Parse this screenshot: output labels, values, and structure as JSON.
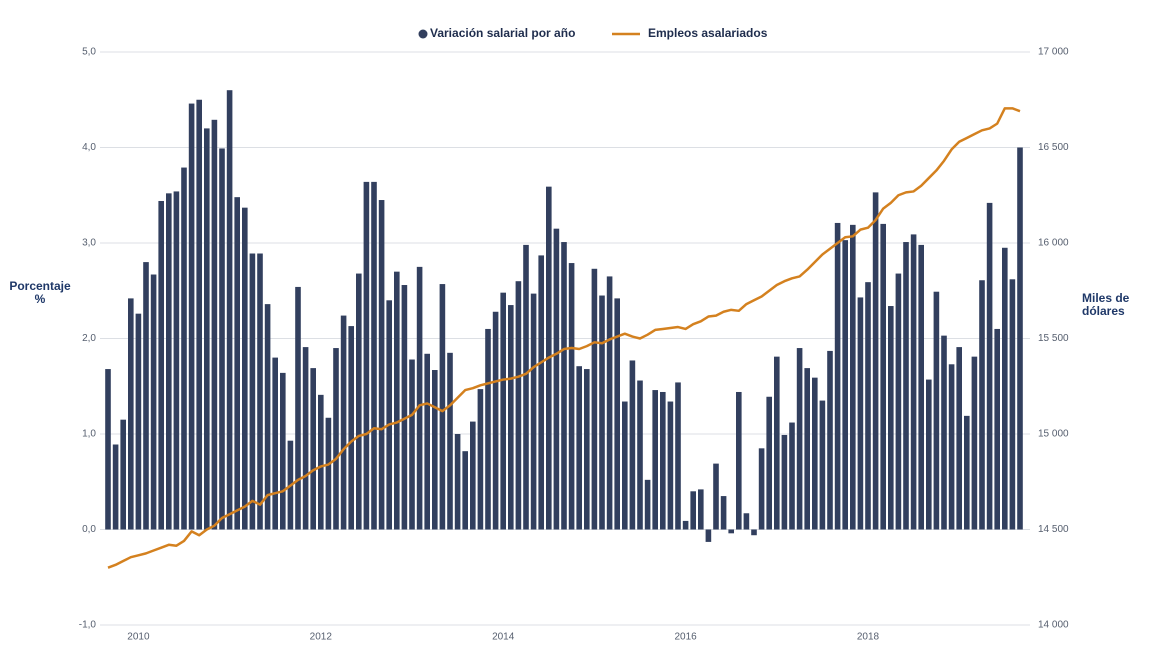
{
  "chart_data": {
    "type": "bar_line",
    "categories": [
      null,
      null,
      null,
      null,
      "2010",
      null,
      null,
      null,
      null,
      null,
      null,
      null,
      null,
      null,
      null,
      null,
      null,
      null,
      null,
      null,
      null,
      null,
      null,
      null,
      null,
      null,
      null,
      null,
      "2012",
      null,
      null,
      null,
      null,
      null,
      null,
      null,
      null,
      null,
      null,
      null,
      null,
      null,
      null,
      null,
      null,
      null,
      null,
      null,
      null,
      null,
      null,
      null,
      "2014",
      null,
      null,
      null,
      null,
      null,
      null,
      null,
      null,
      null,
      null,
      null,
      null,
      null,
      null,
      null,
      null,
      null,
      null,
      null,
      null,
      null,
      null,
      null,
      "2016",
      null,
      null,
      null,
      null,
      null,
      null,
      null,
      null,
      null,
      null,
      null,
      null,
      null,
      null,
      null,
      null,
      null,
      null,
      null,
      null,
      null,
      null,
      null,
      "2018",
      null,
      null,
      null,
      null,
      null,
      null,
      null,
      null,
      null,
      null,
      null,
      null,
      null,
      null,
      null,
      null,
      null,
      null,
      null,
      null
    ],
    "series": [
      {
        "name": "Variación salarial por año",
        "color": "#323f5e",
        "type": "bar",
        "axis": "y",
        "values": [
          1.68,
          0.89,
          1.15,
          2.42,
          2.26,
          2.8,
          2.67,
          3.44,
          3.52,
          3.54,
          3.79,
          4.46,
          4.5,
          4.2,
          4.29,
          3.99,
          4.6,
          3.48,
          3.37,
          2.89,
          2.89,
          2.36,
          1.8,
          1.64,
          0.93,
          2.54,
          1.91,
          1.69,
          1.41,
          1.17,
          1.9,
          2.24,
          2.13,
          2.68,
          3.64,
          3.64,
          3.45,
          2.4,
          2.7,
          2.56,
          1.78,
          2.75,
          1.84,
          1.67,
          2.57,
          1.85,
          1.0,
          0.82,
          1.13,
          1.47,
          2.1,
          2.28,
          2.48,
          2.35,
          2.6,
          2.98,
          2.47,
          2.87,
          3.59,
          3.15,
          3.01,
          2.79,
          1.71,
          1.68,
          2.73,
          2.45,
          2.65,
          2.42,
          1.34,
          1.77,
          1.56,
          0.52,
          1.46,
          1.44,
          1.34,
          1.54,
          0.09,
          0.4,
          0.42,
          -0.13,
          0.69,
          0.35,
          -0.04,
          1.44,
          0.17,
          -0.06,
          0.85,
          1.39,
          1.81,
          0.99,
          1.12,
          1.9,
          1.69,
          1.59,
          1.35,
          1.87,
          3.21,
          3.03,
          3.19,
          2.43,
          2.59,
          3.53,
          3.2,
          2.34,
          2.68,
          3.01,
          3.09,
          2.98,
          1.57,
          2.49,
          2.03,
          1.73,
          1.91,
          1.19,
          1.81,
          2.61,
          3.42,
          2.1,
          2.95,
          2.62,
          4.0
        ]
      },
      {
        "name": "Empleos asalariados",
        "color": "#d4811f",
        "type": "line",
        "axis": "y2",
        "values": [
          14300,
          14315,
          14335,
          14355,
          14365,
          14375,
          14390,
          14405,
          14420,
          14415,
          14440,
          14490,
          14470,
          14500,
          14520,
          14560,
          14580,
          14600,
          14620,
          14650,
          14630,
          14680,
          14690,
          14700,
          14730,
          14760,
          14780,
          14810,
          14830,
          14840,
          14870,
          14920,
          14960,
          14990,
          15000,
          15030,
          15025,
          15050,
          15060,
          15080,
          15100,
          15150,
          15160,
          15140,
          15120,
          15150,
          15190,
          15230,
          15240,
          15255,
          15265,
          15275,
          15285,
          15290,
          15300,
          15315,
          15350,
          15375,
          15400,
          15420,
          15445,
          15450,
          15445,
          15460,
          15480,
          15475,
          15495,
          15510,
          15525,
          15510,
          15500,
          15520,
          15545,
          15550,
          15555,
          15560,
          15550,
          15575,
          15590,
          15615,
          15620,
          15640,
          15650,
          15645,
          15680,
          15700,
          15720,
          15750,
          15780,
          15800,
          15815,
          15825,
          15860,
          15900,
          15940,
          15970,
          16000,
          16030,
          16035,
          16070,
          16080,
          16120,
          16180,
          16210,
          16250,
          16265,
          16270,
          16300,
          16340,
          16380,
          16430,
          16490,
          16530,
          16550,
          16570,
          16590,
          16600,
          16625,
          16705,
          16705,
          16690
        ]
      }
    ],
    "y_label": [
      "Porcentaje",
      "%"
    ],
    "y2_label": [
      "Miles de",
      "dólares"
    ],
    "ylim": [
      -1,
      5
    ],
    "yticks": [
      {
        "value": -1,
        "label": "-1,0"
      },
      {
        "value": 0,
        "label": "0,0"
      },
      {
        "value": 1,
        "label": "1,0"
      },
      {
        "value": 2,
        "label": "2,0"
      },
      {
        "value": 3,
        "label": "3,0"
      },
      {
        "value": 4,
        "label": "4,0"
      },
      {
        "value": 5,
        "label": "5,0"
      }
    ],
    "y2lim": [
      14000,
      17000
    ],
    "y2ticks": [
      {
        "value": 14000,
        "label": "14 000"
      },
      {
        "value": 14500,
        "label": "14 500"
      },
      {
        "value": 15000,
        "label": "15 000"
      },
      {
        "value": 15500,
        "label": "15 500"
      },
      {
        "value": 16000,
        "label": "16 000"
      },
      {
        "value": 16500,
        "label": "16 500"
      },
      {
        "value": 17000,
        "label": "17 000"
      }
    ],
    "grid": true,
    "legend": "top"
  }
}
